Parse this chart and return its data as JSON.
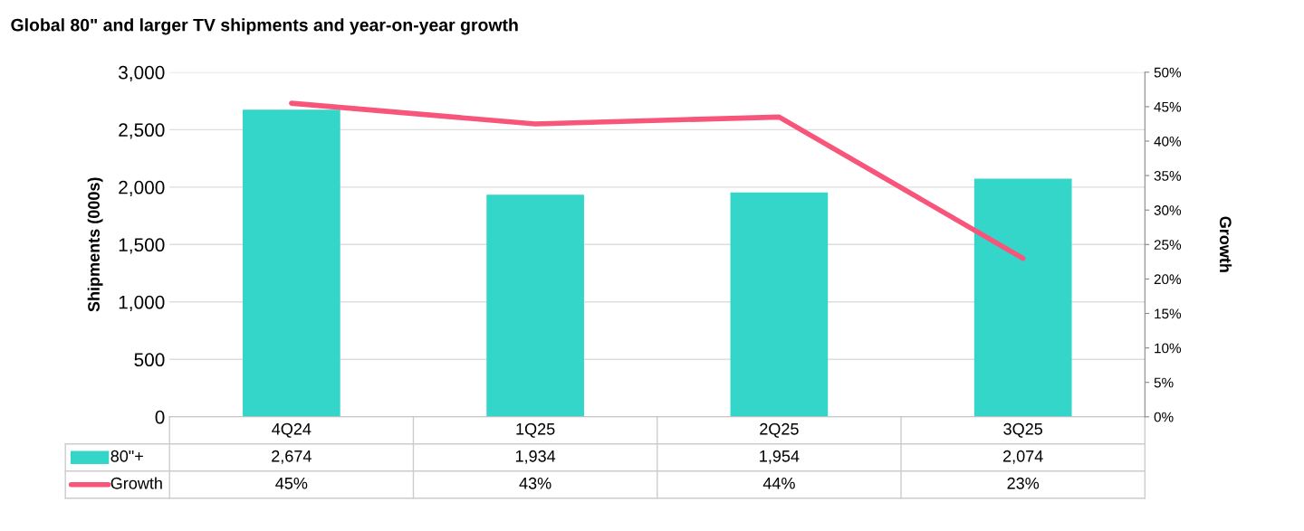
{
  "chart_data": {
    "type": "bar",
    "title": "Global 80\" and larger TV shipments and year-on-year growth",
    "categories": [
      "4Q24",
      "1Q25",
      "2Q25",
      "3Q25"
    ],
    "series": [
      {
        "name": "80\"+",
        "color": "#33d6c8",
        "values": [
          2674,
          1934,
          1954,
          2074
        ],
        "value_labels": [
          "2,674",
          "1,934",
          "1,954",
          "2,074"
        ]
      },
      {
        "name": "Growth",
        "type": "line",
        "axis": "y2",
        "color": "#f7557a",
        "values": [
          45.5,
          42.5,
          43.5,
          23
        ],
        "value_labels": [
          "45%",
          "43%",
          "44%",
          "23%"
        ]
      }
    ],
    "ylabel": "Shipments (000s)",
    "y2label": "Growth",
    "ylim": [
      0,
      3000
    ],
    "yticks": [
      {
        "value": 0,
        "label": "0"
      },
      {
        "value": 500,
        "label": "500"
      },
      {
        "value": 1000,
        "label": "1,000"
      },
      {
        "value": 1500,
        "label": "1,500"
      },
      {
        "value": 2000,
        "label": "2,000"
      },
      {
        "value": 2500,
        "label": "2,500"
      },
      {
        "value": 3000,
        "label": "3,000"
      }
    ],
    "y2lim": [
      0,
      50
    ],
    "y2ticks": [
      {
        "value": 0,
        "label": "0%"
      },
      {
        "value": 5,
        "label": "5%"
      },
      {
        "value": 10,
        "label": "10%"
      },
      {
        "value": 15,
        "label": "15%"
      },
      {
        "value": 20,
        "label": "20%"
      },
      {
        "value": 25,
        "label": "25%"
      },
      {
        "value": 30,
        "label": "30%"
      },
      {
        "value": 35,
        "label": "35%"
      },
      {
        "value": 40,
        "label": "40%"
      },
      {
        "value": 45,
        "label": "45%"
      },
      {
        "value": 50,
        "label": "50%"
      }
    ],
    "grid": "y",
    "legend": "bottom",
    "marker": "none",
    "line_style": "solid"
  }
}
